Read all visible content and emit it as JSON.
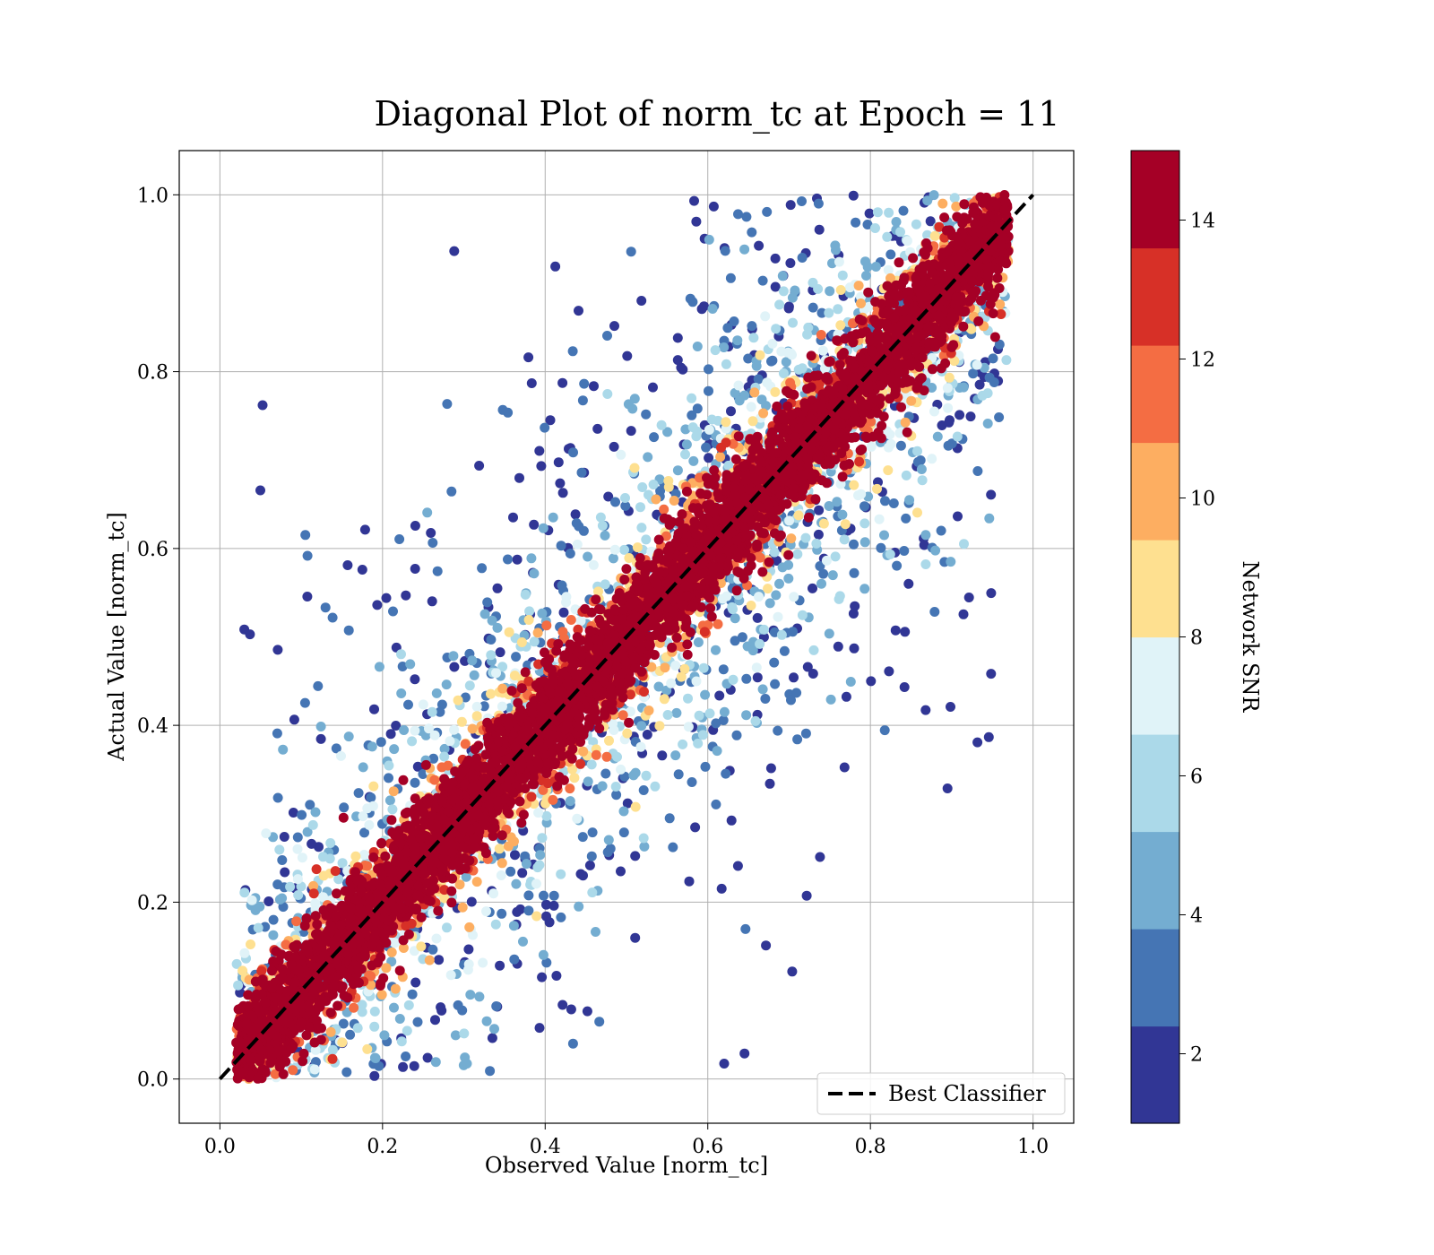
{
  "chart_data": {
    "type": "scatter",
    "title": "Diagonal Plot of norm_tc at Epoch = 11",
    "xlabel": "Observed Value [norm_tc]",
    "ylabel": "Actual Value [norm_tc]",
    "xlim": [
      -0.05,
      1.05
    ],
    "ylim": [
      -0.05,
      1.05
    ],
    "xticks": [
      "0.0",
      "0.2",
      "0.4",
      "0.6",
      "0.8",
      "1.0"
    ],
    "yticks": [
      "0.0",
      "0.2",
      "0.4",
      "0.6",
      "0.8",
      "1.0"
    ],
    "grid": true,
    "reference_line": {
      "name": "Best Classifier",
      "x": [
        0,
        1
      ],
      "y": [
        0,
        1
      ],
      "style": "dashed",
      "color": "#000000"
    },
    "legend": {
      "placement": "lower-right",
      "entries": [
        "Best Classifier"
      ]
    },
    "colorbar": {
      "label": "Network SNR",
      "range": [
        1,
        15
      ],
      "ticks": [
        "2",
        "4",
        "6",
        "8",
        "10",
        "12",
        "14"
      ],
      "colors": [
        "#313695",
        "#4575b4",
        "#74add1",
        "#abd9e9",
        "#e0f3f8",
        "#fee090",
        "#fdae61",
        "#f46d43",
        "#d73027",
        "#a50026"
      ]
    },
    "description_of_points": "Dense cloud of points: high-SNR (dark red) points lie in a band along the diagonal y = x; lower-SNR points (yellow, light blue, dark blue) spread further from the diagonal, bounded by x between ~0.02 and ~0.97 and y between 0 and 1."
  }
}
